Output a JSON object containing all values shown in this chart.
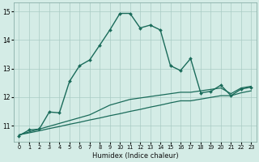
{
  "xlabel": "Humidex (Indice chaleur)",
  "bg_color": "#d4ece6",
  "grid_color": "#aaccc4",
  "line_color": "#1a6b5a",
  "xlim": [
    -0.5,
    23.5
  ],
  "ylim": [
    10.45,
    15.3
  ],
  "yticks": [
    11,
    12,
    13,
    14,
    15
  ],
  "xticks": [
    0,
    1,
    2,
    3,
    4,
    5,
    6,
    7,
    8,
    9,
    10,
    11,
    12,
    13,
    14,
    15,
    16,
    17,
    18,
    19,
    20,
    21,
    22,
    23
  ],
  "series1_x": [
    0,
    1,
    2,
    3,
    4,
    5,
    6,
    7,
    8,
    9,
    10,
    11,
    12,
    13,
    14,
    15,
    16,
    17,
    18,
    19,
    20,
    21,
    22,
    23
  ],
  "series1_y": [
    10.68,
    10.75,
    10.82,
    10.9,
    10.97,
    11.05,
    11.12,
    11.2,
    11.27,
    11.35,
    11.42,
    11.5,
    11.57,
    11.65,
    11.72,
    11.8,
    11.87,
    11.87,
    11.93,
    11.99,
    12.05,
    12.05,
    12.15,
    12.22
  ],
  "series2_x": [
    0,
    1,
    2,
    3,
    4,
    5,
    6,
    7,
    8,
    9,
    10,
    11,
    12,
    13,
    14,
    15,
    16,
    17,
    18,
    19,
    20,
    21,
    22,
    23
  ],
  "series2_y": [
    10.68,
    10.78,
    10.88,
    10.98,
    11.08,
    11.18,
    11.28,
    11.38,
    11.55,
    11.72,
    11.82,
    11.92,
    11.97,
    12.02,
    12.07,
    12.12,
    12.17,
    12.17,
    12.22,
    12.27,
    12.32,
    12.12,
    12.32,
    12.38
  ],
  "series3_x": [
    0,
    1,
    2,
    3,
    4,
    5,
    6,
    7,
    8,
    9,
    10,
    11,
    12,
    13,
    14,
    15,
    16,
    17,
    18,
    19,
    20,
    21,
    22,
    23
  ],
  "series3_y": [
    10.65,
    10.85,
    10.88,
    11.48,
    11.45,
    12.55,
    13.1,
    13.3,
    13.82,
    14.35,
    14.93,
    14.93,
    14.42,
    14.52,
    14.35,
    13.1,
    12.93,
    13.35,
    12.15,
    12.2,
    12.42,
    12.05,
    12.28,
    12.35
  ]
}
